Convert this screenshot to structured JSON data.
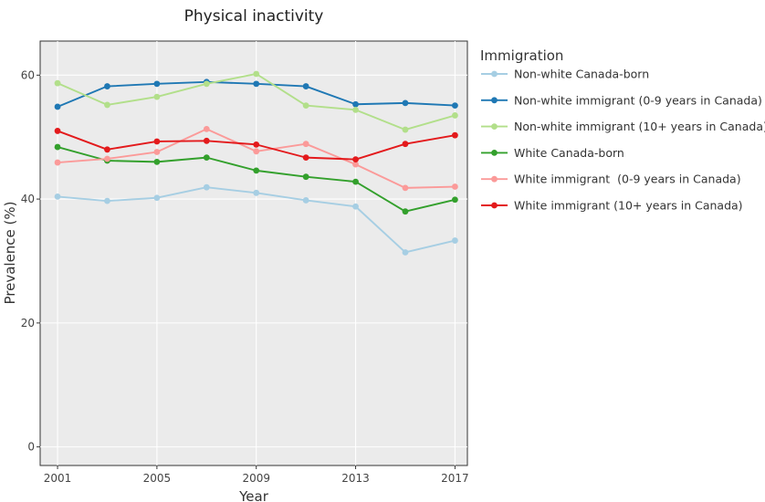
{
  "chart_data": {
    "type": "line",
    "title": "Physical inactivity",
    "xlabel": "Year",
    "ylabel": "Prevalence (%)",
    "x": [
      2001,
      2003,
      2005,
      2007,
      2009,
      2011,
      2013,
      2015,
      2017
    ],
    "x_ticks": [
      2001,
      2005,
      2009,
      2013,
      2017
    ],
    "y_ticks": [
      0,
      20,
      40,
      60
    ],
    "xlim": [
      2000.3,
      2017.5
    ],
    "ylim": [
      -3,
      65.5
    ],
    "grid": true,
    "legend": {
      "title": "Immigration",
      "position": "right"
    },
    "series": [
      {
        "name": "Non-white Canada-born",
        "color": "#a6cee3",
        "values": [
          40.4,
          39.7,
          40.2,
          41.9,
          41.0,
          39.8,
          38.8,
          31.4,
          33.3
        ]
      },
      {
        "name": "Non-white immigrant (0-9 years in Canada)",
        "color": "#1f78b4",
        "values": [
          54.9,
          58.2,
          58.6,
          58.9,
          58.6,
          58.2,
          55.3,
          55.5,
          55.1
        ]
      },
      {
        "name": "Non-white immigrant (10+ years in Canada)",
        "color": "#b2df8a",
        "values": [
          58.7,
          55.2,
          56.5,
          58.6,
          60.2,
          55.1,
          54.4,
          51.2,
          53.5
        ]
      },
      {
        "name": "White Canada-born",
        "color": "#33a02c",
        "values": [
          48.4,
          46.2,
          46.0,
          46.7,
          44.6,
          43.6,
          42.8,
          38.0,
          39.9
        ]
      },
      {
        "name": "White immigrant  (0-9 years in Canada)",
        "color": "#fb9a99",
        "values": [
          45.9,
          46.5,
          47.6,
          51.3,
          47.7,
          48.9,
          45.6,
          41.8,
          42.0
        ]
      },
      {
        "name": "White immigrant (10+ years in Canada)",
        "color": "#e31a1c",
        "values": [
          51.0,
          48.0,
          49.3,
          49.4,
          48.8,
          46.7,
          46.4,
          48.9,
          50.3
        ]
      }
    ]
  }
}
